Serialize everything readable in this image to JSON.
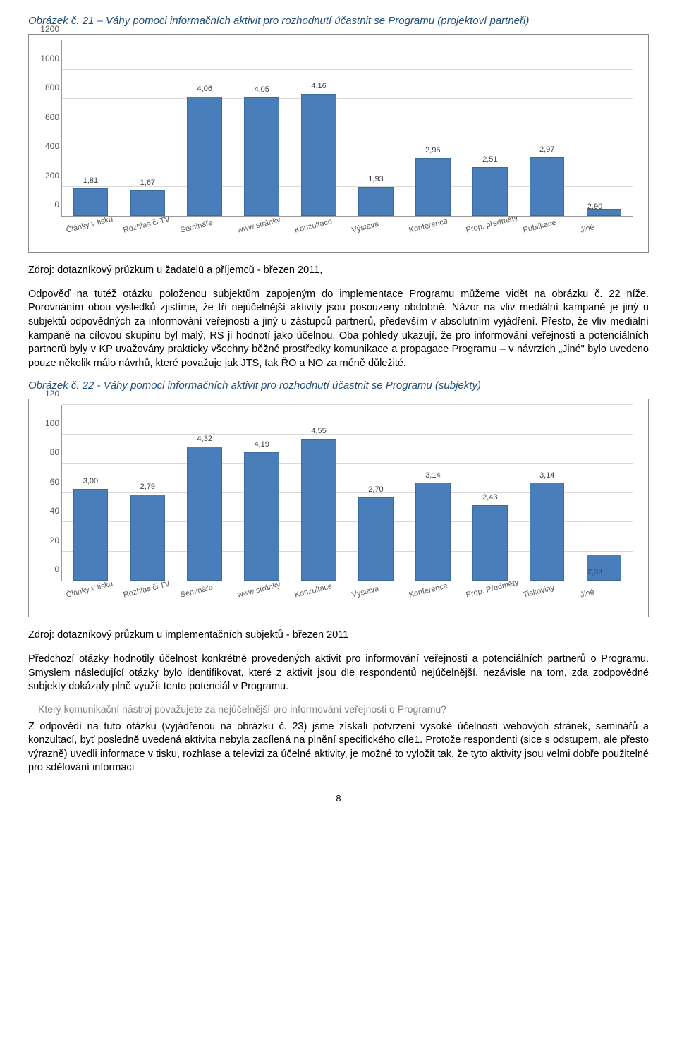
{
  "caption1": "Obrázek č. 21 – Váhy pomoci informačních aktivit pro rozhodnutí účastnit se Programu (projektoví partneři)",
  "chart1": {
    "type": "bar",
    "ylim": [
      0,
      1200
    ],
    "ytick_step": 200,
    "yticks": [
      "0",
      "200",
      "400",
      "600",
      "800",
      "1000",
      "1200"
    ],
    "grid_color": "#d8d8d8",
    "axis_color": "#999999",
    "bar_color": "#4a7ebb",
    "bar_border": "#3b6aa0",
    "label_fontsize": 11,
    "tick_fontsize": 12,
    "categories": [
      "Články v tisku",
      "Rozhlas či TV",
      "Semináře",
      "www stránky",
      "Konzultace",
      "Výstava",
      "Konference",
      "Prop. předměty",
      "Publikace",
      "Jiné"
    ],
    "values": [
      190,
      175,
      815,
      812,
      835,
      200,
      395,
      335,
      400,
      50
    ],
    "bar_labels": [
      "1,81",
      "1,67",
      "4,06",
      "4,05",
      "4,16",
      "1,93",
      "2,95",
      "2,51",
      "2,97",
      ""
    ],
    "inside_label_last": "2,90"
  },
  "source1": "Zdroj: dotazníkový průzkum u žadatelů a příjemců - březen 2011,",
  "para1": "Odpověď na tutéž otázku položenou subjektům zapojeným do implementace Programu můžeme vidět na obrázku č. 22 níže. Porovnáním obou výsledků zjistíme, že tři nejúčelnější aktivity jsou posouzeny obdobně. Názor na vliv mediální kampaně je jiný u subjektů odpovědných za informování veřejnosti a jiný u zástupců partnerů, především v absolutním vyjádření. Přesto, že vliv mediální kampaně na cílovou skupinu byl malý, RS ji hodnotí jako účelnou. Oba pohledy ukazují, že pro informování veřejnosti a potenciálních partnerů byly v KP uvažovány prakticky všechny běžné prostředky komunikace a propagace Programu – v návrzích „Jiné\" bylo uvedeno pouze několik málo návrhů, které považuje jak JTS, tak ŘO a NO za méně důležité.",
  "caption2": "Obrázek č. 22 - Váhy pomoci informačních aktivit pro rozhodnutí účastnit se Programu (subjekty)",
  "chart2": {
    "type": "bar",
    "ylim": [
      0,
      120
    ],
    "ytick_step": 20,
    "yticks": [
      "0",
      "20",
      "40",
      "60",
      "80",
      "100",
      "120"
    ],
    "grid_color": "#d8d8d8",
    "axis_color": "#999999",
    "bar_color": "#4a7ebb",
    "bar_border": "#3b6aa0",
    "label_fontsize": 11,
    "tick_fontsize": 12,
    "categories": [
      "Články v tisku",
      "Rozhlas či TV",
      "Semináře",
      "www stránky",
      "Konzultace",
      "Výstava",
      "Konference",
      "Prop. Předměty",
      "Tiskoviny",
      "Jiné"
    ],
    "values": [
      63,
      59,
      92,
      88,
      97,
      57,
      67,
      52,
      67,
      18
    ],
    "bar_labels": [
      "3,00",
      "2,79",
      "4,32",
      "4,19",
      "4,55",
      "2,70",
      "3,14",
      "2,43",
      "3,14",
      ""
    ],
    "inside_label_last": "2,33"
  },
  "source2": "Zdroj: dotazníkový průzkum u implementačních subjektů - březen 2011",
  "para2": "Předchozí otázky hodnotily účelnost konkrétně provedených aktivit pro informování veřejnosti a potenciálních partnerů o Programu. Smyslem následující otázky bylo identifikovat, které z aktivit jsou dle respondentů nejúčelnější, nezávisle na tom, zda zodpovědné subjekty dokázaly plně využít tento potenciál v Programu.",
  "question": "Který komunikační nástroj považujete za nejúčelnější pro informování veřejnosti o Programu?",
  "para3": "Z odpovědí na tuto otázku (vyjádřenou na obrázku č. 23) jsme získali potvrzení vysoké účelnosti webových stránek, seminářů a konzultací, byť posledně uvedená aktivita nebyla zacílená na plnění specifického cíle1. Protože respondenti (sice s odstupem, ale přesto výrazně) uvedli informace v tisku, rozhlase a televizi za účelné aktivity, je možné to vyložit tak, že tyto aktivity jsou velmi dobře použitelné pro sdělování informací",
  "pagenum": "8"
}
